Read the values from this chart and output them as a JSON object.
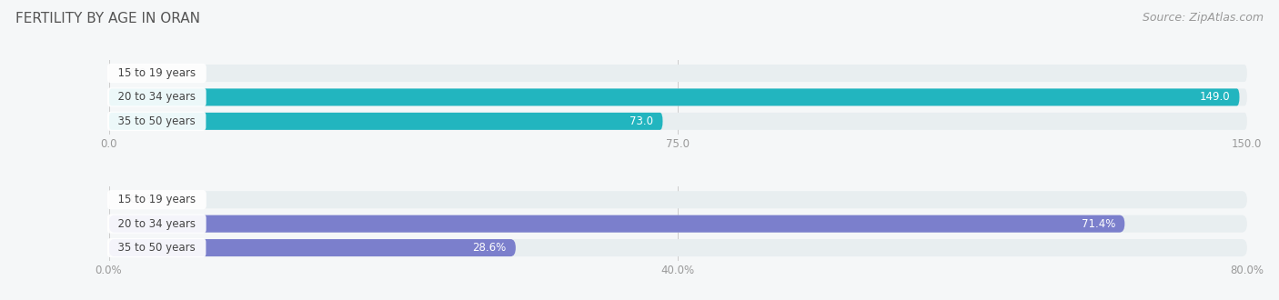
{
  "title": "FERTILITY BY AGE IN ORAN",
  "source": "Source: ZipAtlas.com",
  "top_chart": {
    "categories": [
      "15 to 19 years",
      "20 to 34 years",
      "35 to 50 years"
    ],
    "values": [
      0.0,
      149.0,
      73.0
    ],
    "xlim": [
      0,
      150.0
    ],
    "xticks": [
      0.0,
      75.0,
      150.0
    ],
    "xtick_labels": [
      "0.0",
      "75.0",
      "150.0"
    ],
    "bar_color_main": "#22b5bf",
    "bar_color_light": "#6dd0d8",
    "bar_bg_color": "#e8eef0",
    "label_inside_color": "#ffffff",
    "label_outside_color": "#999999"
  },
  "bottom_chart": {
    "categories": [
      "15 to 19 years",
      "20 to 34 years",
      "35 to 50 years"
    ],
    "values": [
      0.0,
      71.4,
      28.6
    ],
    "xlim": [
      0,
      80.0
    ],
    "xticks": [
      0.0,
      40.0,
      80.0
    ],
    "xtick_labels": [
      "0.0%",
      "40.0%",
      "80.0%"
    ],
    "bar_color_main": "#7b7fcc",
    "bar_color_light": "#a8abde",
    "bar_bg_color": "#e8eef0",
    "label_inside_color": "#ffffff",
    "label_outside_color": "#999999"
  },
  "bg_color": "#f5f7f8",
  "title_fontsize": 11,
  "source_fontsize": 9,
  "label_fontsize": 8.5,
  "bar_label_fontsize": 8.5,
  "tick_fontsize": 8.5
}
